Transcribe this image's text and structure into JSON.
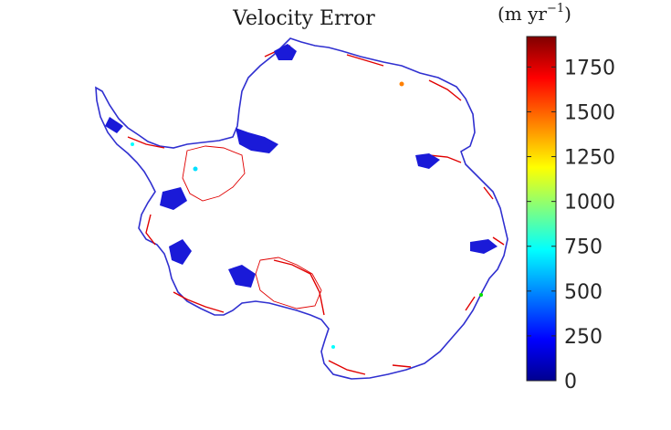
{
  "figure": {
    "title": "Velocity Error",
    "colorbar": {
      "unit_label": "(m yr",
      "unit_exponent": "−1",
      "unit_close": ")",
      "min": 0,
      "max": 1920,
      "ticks": [
        0,
        250,
        500,
        750,
        1000,
        1250,
        1500,
        1750
      ],
      "tick_labels": [
        "0",
        "250",
        "500",
        "750",
        "1000",
        "1250",
        "1500",
        "1750"
      ],
      "colormap": "jet",
      "colormap_stops": [
        "#00008f",
        "#0000ff",
        "#00ffff",
        "#ffff00",
        "#ff0000",
        "#800000"
      ]
    },
    "map": {
      "region": "Antarctica",
      "background_color": "#ffffff",
      "coast_color": "#3030d0",
      "high_error_color": "#e00000"
    }
  }
}
